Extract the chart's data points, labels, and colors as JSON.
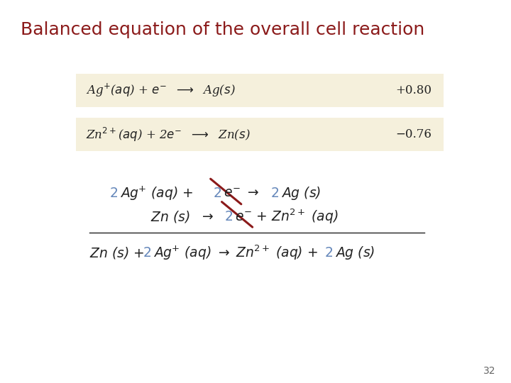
{
  "title": "Balanced equation of the overall cell reaction",
  "title_color": "#8B1A1A",
  "title_fontsize": 18,
  "bg_color": "#FFFFFF",
  "box_bg": "#F5F0DC",
  "black": "#222222",
  "blue": "#6688BB",
  "cancel_color": "#8B1A1A",
  "page_number": "32"
}
